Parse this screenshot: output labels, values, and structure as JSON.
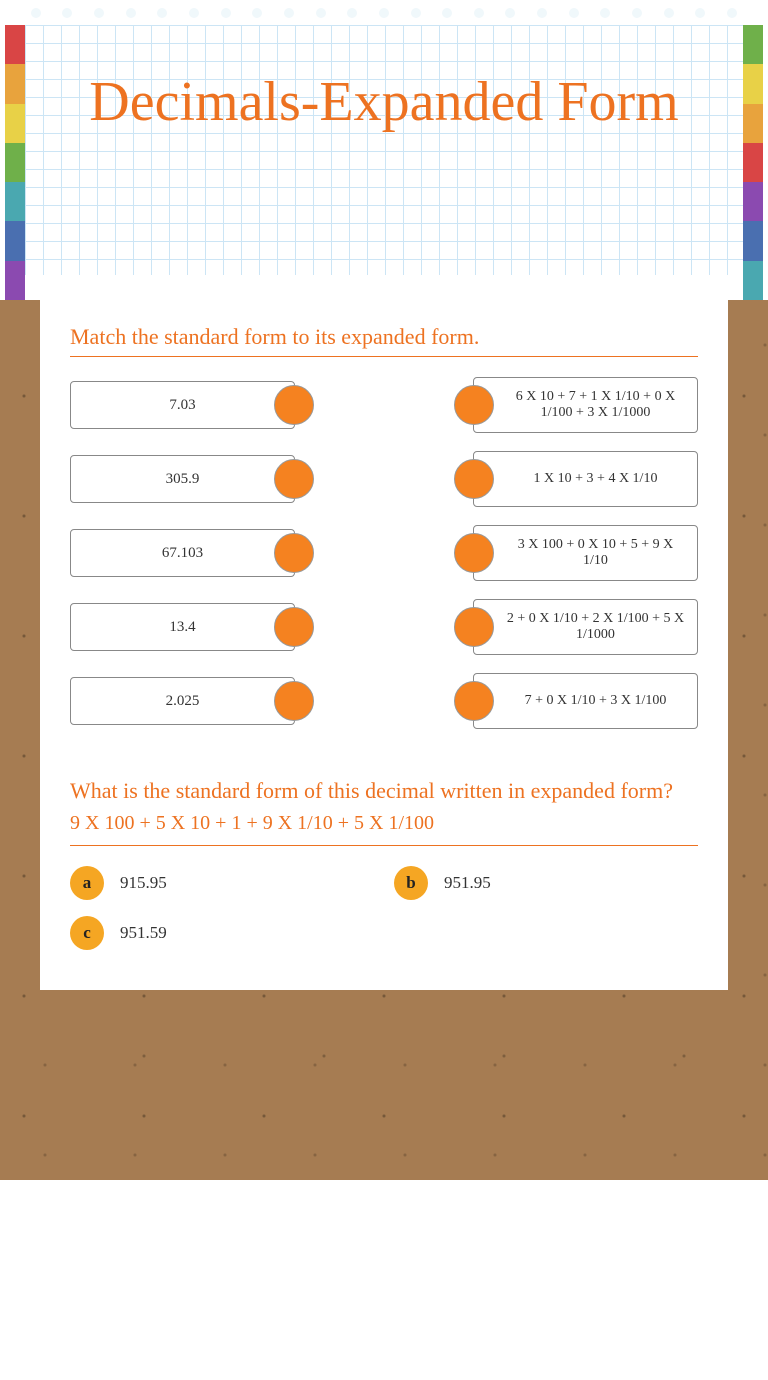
{
  "colors": {
    "accent": "#ed7221",
    "connector": "#f58220",
    "option_circle": "#f5a623",
    "rainbow": [
      "#d94545",
      "#e8a33d",
      "#e8d147",
      "#6fb04a",
      "#4aa8b0",
      "#4a6fb0",
      "#8b4ab0"
    ]
  },
  "header": {
    "title": "Decimals-Expanded Form"
  },
  "match": {
    "prompt": "Match the standard form to its expanded form.",
    "left": [
      "7.03",
      "305.9",
      "67.103",
      "13.4",
      "2.025"
    ],
    "right": [
      "6 X 10 + 7 + 1 X 1/10 + 0 X 1/100 + 3 X 1/1000",
      "1 X 10 + 3 + 4 X 1/10",
      "3 X 100 + 0 X 10 + 5 + 9 X 1/10",
      "2 + 0 X 1/10 + 2 X 1/100 + 5 X 1/1000",
      "7 + 0 X 1/10 + 3 X 1/100"
    ]
  },
  "question": {
    "prompt": "What is the  standard form of this decimal written in expanded form?",
    "expression": "9 X 100 + 5 X 10 + 1  + 9 X 1/10 + 5 X 1/100",
    "options": [
      {
        "letter": "a",
        "text": "915.95"
      },
      {
        "letter": "b",
        "text": "951.95"
      },
      {
        "letter": "c",
        "text": "951.59"
      }
    ]
  }
}
